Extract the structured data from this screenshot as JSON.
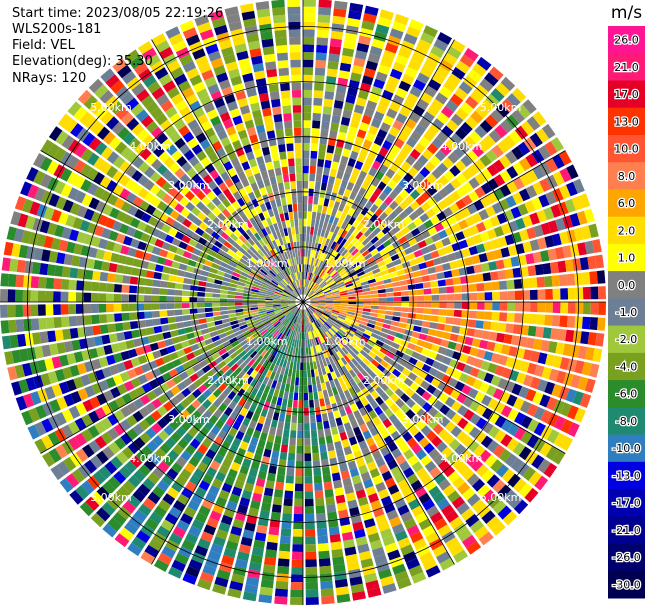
{
  "header": {
    "start_time": "Start time: 2023/08/05 22:19:26",
    "instrument": "WLS200s-181",
    "field": "Field: VEL",
    "elevation": "Elevation(deg): 35.30",
    "nrays": "NRays: 120"
  },
  "colorbar": {
    "unit": "m/s",
    "ticks": [
      "26.0",
      "21.0",
      "17.0",
      "13.0",
      "10.0",
      "8.0",
      "6.0",
      "2.0",
      "1.0",
      "0.0",
      "-1.0",
      "-2.0",
      "-4.0",
      "-6.0",
      "-8.0",
      "-10.0",
      "-13.0",
      "-17.0",
      "-21.0",
      "-26.0",
      "-30.0"
    ],
    "colors": [
      "#ff1493",
      "#ff1a75",
      "#e60026",
      "#ff3300",
      "#ff5533",
      "#ff7f50",
      "#ffa500",
      "#ffdd00",
      "#ffff00",
      "#808080",
      "#6c7f95",
      "#a0c83c",
      "#7aa020",
      "#2a8c2a",
      "#1f8a70",
      "#2f7fc0",
      "#0000e0",
      "#0000b0",
      "#000090",
      "#00006e",
      "#000050"
    ]
  },
  "chart_data": {
    "type": "heatmap",
    "title": "",
    "field": "VEL",
    "units": "m/s",
    "n_rays": 120,
    "range_rings_km": [
      1.0,
      2.0,
      3.0,
      4.0,
      5.0
    ],
    "range_ring_labels": [
      "1.00km",
      "2.00km",
      "3.00km",
      "4.00km",
      "5.00km"
    ],
    "max_range_km": 5.5,
    "color_range": [
      -30,
      26
    ],
    "dominant_sectors": [
      {
        "azimuth_deg": [
          15,
          75
        ],
        "velocity_ms": 2.0
      },
      {
        "azimuth_deg": [
          60,
          110
        ],
        "velocity_ms": 8.0
      },
      {
        "azimuth_deg": [
          110,
          170
        ],
        "velocity_ms": 1.0
      },
      {
        "azimuth_deg": [
          170,
          230
        ],
        "velocity_ms": -6.0
      },
      {
        "azimuth_deg": [
          230,
          300
        ],
        "velocity_ms": -2.0
      },
      {
        "azimuth_deg": [
          300,
          15
        ],
        "velocity_ms": 0.0
      }
    ]
  }
}
